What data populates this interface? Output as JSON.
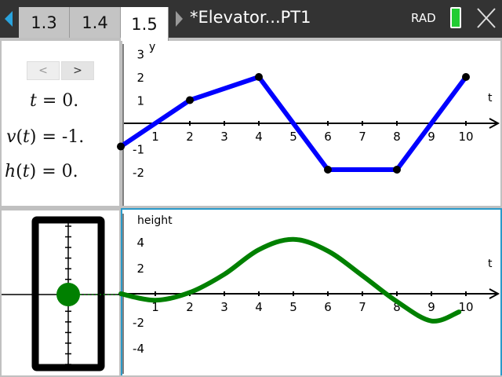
{
  "tabs": [
    {
      "label": "1.3"
    },
    {
      "label": "1.4"
    },
    {
      "label": "1.5"
    }
  ],
  "active_tab": "1.5",
  "document_title": "*Elevator...PT1",
  "angle_mode": "RAD",
  "colors": {
    "velocity": "#0000ff",
    "height": "#008000",
    "selected_border": "#2a9ac9",
    "battery": "#22cc33"
  },
  "calc": {
    "prev": "<",
    "next": ">",
    "t_label": "t",
    "t_value": "= 0.",
    "v_label": "v",
    "v_value": "= -1.",
    "h_label": "h",
    "h_value": "= 0.",
    "arg": "t"
  },
  "chart_data": [
    {
      "type": "line",
      "xlabel": "t",
      "ylabel": "y",
      "xlim": [
        -0.1,
        11
      ],
      "ylim": [
        -3,
        3.4
      ],
      "xticks": [
        "1",
        "2",
        "3",
        "4",
        "5",
        "6",
        "7",
        "8",
        "9",
        "10"
      ],
      "yticks": [
        "3",
        "2",
        "1",
        "-1",
        "-2"
      ],
      "x": [
        0,
        2,
        4,
        6,
        8,
        10
      ],
      "y": [
        -1,
        1,
        2,
        -2,
        -2,
        2
      ]
    },
    {
      "type": "line",
      "xlabel": "t",
      "ylabel": "height",
      "xlim": [
        -0.1,
        11
      ],
      "ylim": [
        -6,
        5
      ],
      "xticks": [
        "1",
        "2",
        "3",
        "4",
        "5",
        "6",
        "7",
        "8",
        "9",
        "10"
      ],
      "yticks": [
        "4",
        "2",
        "-2",
        "-4"
      ],
      "x": [
        0,
        1,
        2,
        3,
        4,
        5,
        6,
        7,
        8,
        9,
        9.8
      ],
      "y": [
        0,
        -0.5,
        0.1,
        1.5,
        3.4,
        4.2,
        3.3,
        1.4,
        -0.6,
        -2.1,
        -1.4
      ]
    }
  ]
}
